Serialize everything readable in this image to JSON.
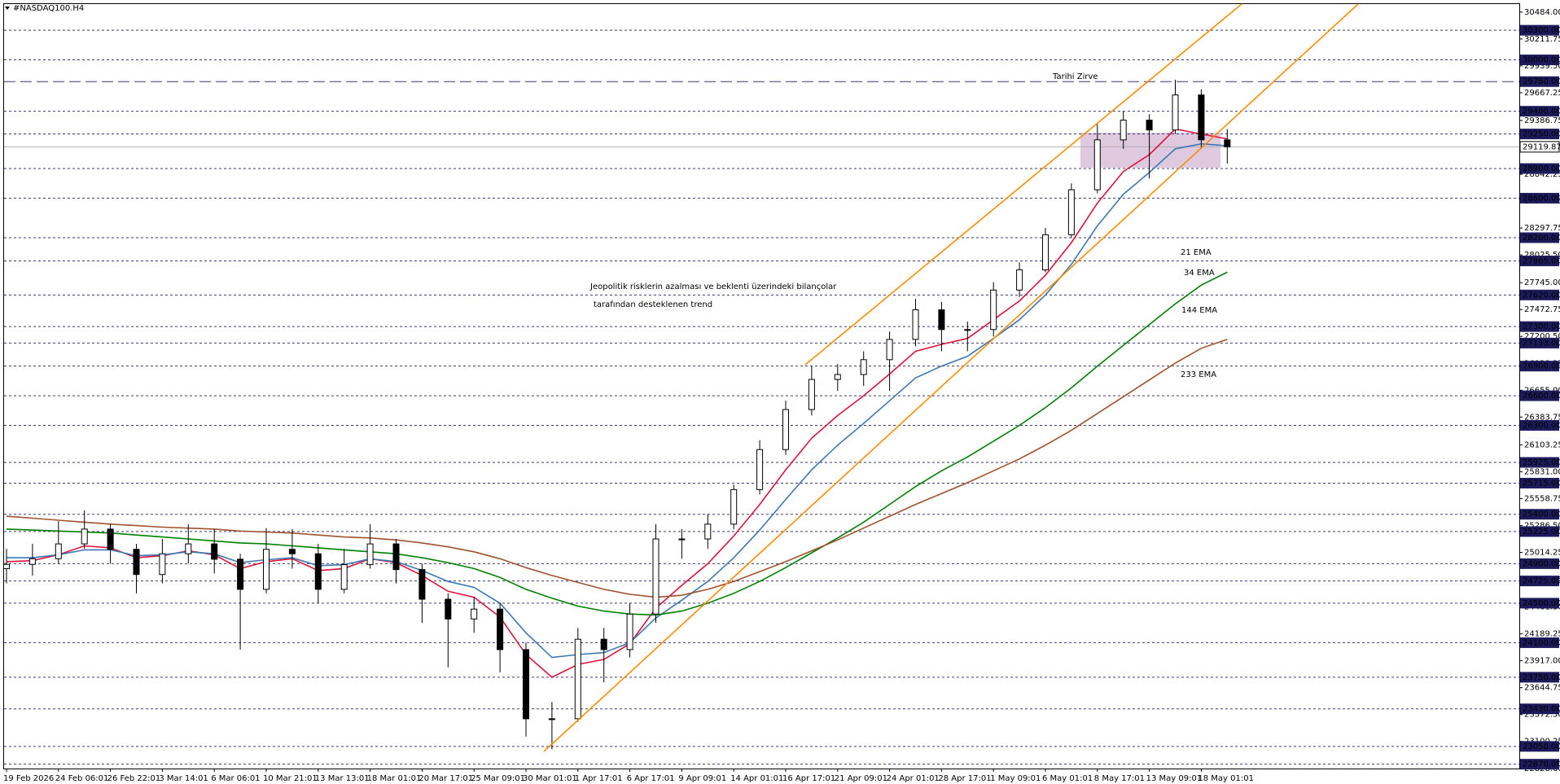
{
  "chart_data": {
    "type": "candlestick",
    "title": "#NASDAQ100.H4",
    "categories": [
      "19 Feb 2026",
      null,
      "24 Feb 06:01",
      null,
      "26 Feb 22:01",
      null,
      "3 Mar 14:01",
      null,
      "6 Mar 06:01",
      null,
      "10 Mar 21:01",
      null,
      "13 Mar 13:01",
      null,
      "18 Mar 01:01",
      null,
      "20 Mar 17:01",
      null,
      "25 Mar 09:01",
      null,
      "30 Mar 01:01",
      null,
      "1 Apr 17:01",
      null,
      "6 Apr 17:01",
      null,
      "9 Apr 09:01",
      null,
      "14 Apr 01:01",
      null,
      "16 Apr 17:01",
      null,
      "21 Apr 09:01",
      null,
      "24 Apr 01:01",
      null,
      "28 Apr 17:01",
      null,
      "1 May 09:01",
      null,
      "6 May 01:01",
      null,
      "8 May 17:01",
      null,
      "13 May 09:01",
      null,
      "18 May 01:01",
      null
    ],
    "open": [
      24850,
      24893,
      24950,
      25100,
      25250,
      25045,
      24790,
      25000,
      25100,
      24945,
      24640,
      25045,
      25000,
      24640,
      24890,
      25100,
      24840,
      24540,
      24340,
      24440,
      24030,
      23330,
      23330,
      24135,
      24030,
      24390,
      25150,
      25150,
      25300,
      25650,
      26055,
      26460,
      26765,
      26815,
      26965,
      27170,
      27470,
      27270,
      27270,
      27670,
      27875,
      28230,
      28685,
      29190,
      29390,
      29290,
      29645,
      29190
    ],
    "high": [
      25050,
      25100,
      25330,
      25440,
      25300,
      25100,
      25150,
      25300,
      25250,
      25000,
      25260,
      25250,
      25100,
      25050,
      25300,
      25150,
      24900,
      24600,
      24560,
      24500,
      24100,
      23500,
      24250,
      24250,
      24500,
      25300,
      25250,
      25400,
      25700,
      26150,
      26550,
      26900,
      26920,
      27050,
      27250,
      27580,
      27550,
      27350,
      27750,
      27950,
      28300,
      28750,
      29350,
      29480,
      29450,
      29800,
      29700,
      29300
    ],
    "low": [
      24700,
      24780,
      24900,
      25050,
      24900,
      24600,
      24700,
      24900,
      24800,
      24030,
      24600,
      24850,
      24500,
      24600,
      24850,
      24700,
      24300,
      23850,
      24200,
      23800,
      23150,
      23020,
      23300,
      23700,
      23950,
      24300,
      24950,
      25050,
      25250,
      25600,
      26000,
      26400,
      26650,
      26700,
      26650,
      27100,
      27050,
      27050,
      27200,
      27600,
      27850,
      28200,
      28650,
      29100,
      28800,
      29250,
      29100,
      28950
    ],
    "close": [
      24893,
      24950,
      25100,
      25250,
      25045,
      24790,
      25000,
      25100,
      24945,
      24640,
      25045,
      25000,
      24640,
      24890,
      25100,
      24840,
      24540,
      24340,
      24440,
      24030,
      23330,
      23330,
      24135,
      24030,
      24390,
      25150,
      25150,
      25300,
      25650,
      26055,
      26460,
      26765,
      26815,
      26965,
      27170,
      27470,
      27270,
      27270,
      27670,
      27875,
      28230,
      28685,
      29190,
      29390,
      29290,
      29645,
      29190,
      29120
    ],
    "up_color": "#ffffff",
    "down_color": "#000000",
    "series": [
      {
        "name": "21 EMA",
        "color": "#dc143c",
        "values": [
          24920,
          24930,
          24990,
          25080,
          25060,
          24960,
          24980,
          25030,
          24990,
          24850,
          24920,
          24950,
          24830,
          24850,
          24950,
          24910,
          24780,
          24620,
          24560,
          24360,
          23980,
          23750,
          23880,
          23930,
          24090,
          24450,
          24680,
          24900,
          25180,
          25500,
          25850,
          26170,
          26400,
          26600,
          26820,
          27050,
          27120,
          27180,
          27370,
          27560,
          27820,
          28150,
          28550,
          28870,
          29040,
          29300,
          29250,
          29200
        ]
      },
      {
        "name": "34 EMA",
        "color": "#3c78b4",
        "values": [
          24960,
          24960,
          24990,
          25040,
          25040,
          24980,
          24990,
          25020,
          25000,
          24910,
          24940,
          24960,
          24880,
          24890,
          24950,
          24920,
          24830,
          24720,
          24660,
          24500,
          24200,
          23950,
          23980,
          24000,
          24100,
          24350,
          24530,
          24720,
          24960,
          25240,
          25550,
          25850,
          26100,
          26320,
          26550,
          26780,
          26900,
          27000,
          27180,
          27370,
          27620,
          27930,
          28320,
          28640,
          28860,
          29100,
          29150,
          29130
        ]
      },
      {
        "name": "144 EMA",
        "color": "#008000",
        "values": [
          25250,
          25240,
          25230,
          25220,
          25210,
          25190,
          25170,
          25150,
          25130,
          25110,
          25100,
          25080,
          25060,
          25040,
          25020,
          25000,
          24960,
          24910,
          24850,
          24760,
          24640,
          24550,
          24470,
          24420,
          24390,
          24380,
          24420,
          24500,
          24600,
          24720,
          24860,
          25010,
          25160,
          25320,
          25500,
          25680,
          25840,
          25980,
          26140,
          26300,
          26480,
          26680,
          26900,
          27110,
          27320,
          27530,
          27720,
          27850
        ]
      },
      {
        "name": "233 EMA",
        "color": "#a0522d",
        "values": [
          25380,
          25360,
          25340,
          25320,
          25300,
          25285,
          25270,
          25260,
          25250,
          25230,
          25220,
          25210,
          25190,
          25170,
          25160,
          25140,
          25110,
          25070,
          25020,
          24950,
          24860,
          24780,
          24710,
          24640,
          24590,
          24560,
          24580,
          24640,
          24720,
          24820,
          24920,
          25030,
          25140,
          25260,
          25380,
          25500,
          25610,
          25720,
          25840,
          25960,
          26100,
          26250,
          26420,
          26590,
          26760,
          26930,
          27080,
          27170
        ]
      }
    ],
    "ylim": [
      22826,
      30565
    ],
    "yticks": [
      {
        "value": 30484,
        "label": "30484.00"
      },
      {
        "value": 30211.75,
        "label": "30211.75"
      },
      {
        "value": 29939.5,
        "label": "29939.50"
      },
      {
        "value": 29667.25,
        "label": "29667.25"
      },
      {
        "value": 29386.75,
        "label": "29386.75"
      },
      {
        "value": 28842.25,
        "label": "28842.25"
      },
      {
        "value": 28570,
        "label": "28570.00"
      },
      {
        "value": 28297.75,
        "label": "28297.75"
      },
      {
        "value": 28025.5,
        "label": "28025.50"
      },
      {
        "value": 27745,
        "label": "27745.00"
      },
      {
        "value": 27472.75,
        "label": "27472.75"
      },
      {
        "value": 27200.5,
        "label": "27200.50"
      },
      {
        "value": 26928.25,
        "label": "26928.25"
      },
      {
        "value": 26655,
        "label": "26655.00"
      },
      {
        "value": 26383.75,
        "label": "26383.75"
      },
      {
        "value": 26103.25,
        "label": "26103.25"
      },
      {
        "value": 25831,
        "label": "25831.00"
      },
      {
        "value": 25558.75,
        "label": "25558.75"
      },
      {
        "value": 25286.5,
        "label": "25286.50"
      },
      {
        "value": 25014.25,
        "label": "25014.25"
      },
      {
        "value": 24742,
        "label": "24742.00"
      },
      {
        "value": 24461.5,
        "label": "24461.50"
      },
      {
        "value": 24189.25,
        "label": "24189.25"
      },
      {
        "value": 23917,
        "label": "23917.00"
      },
      {
        "value": 23644.75,
        "label": "23644.75"
      },
      {
        "value": 23372.5,
        "label": "23372.50"
      },
      {
        "value": 23100.25,
        "label": "23100.25"
      },
      {
        "value": 22828,
        "label": "22828.00"
      }
    ],
    "levels": [
      {
        "value": 30300,
        "label": "30300.00"
      },
      {
        "value": 30000,
        "label": "30000.00"
      },
      {
        "value": 29480,
        "label": "29480.00"
      },
      {
        "value": 29250,
        "label": "29250.00"
      },
      {
        "value": 28900,
        "label": "28900.00"
      },
      {
        "value": 28600,
        "label": "28600.00"
      },
      {
        "value": 28200,
        "label": "28200.00"
      },
      {
        "value": 27965,
        "label": "27965.00"
      },
      {
        "value": 27620,
        "label": "27620.00"
      },
      {
        "value": 27300,
        "label": "27300.00"
      },
      {
        "value": 27133,
        "label": "27133.00"
      },
      {
        "value": 26900,
        "label": "26900.00"
      },
      {
        "value": 26600,
        "label": "26600.00"
      },
      {
        "value": 26300,
        "label": "26300.00"
      },
      {
        "value": 25925,
        "label": "25925.00"
      },
      {
        "value": 25715,
        "label": "25715.00"
      },
      {
        "value": 25400,
        "label": "25400.00"
      },
      {
        "value": 25225,
        "label": "25225.00"
      },
      {
        "value": 24900,
        "label": "24900.00"
      },
      {
        "value": 24725,
        "label": "24725.00"
      },
      {
        "value": 24500,
        "label": "24500.00"
      },
      {
        "value": 24100,
        "label": "24100.00"
      },
      {
        "value": 23750,
        "label": "23750.00"
      },
      {
        "value": 23430,
        "label": "23430.00"
      },
      {
        "value": 23050,
        "label": "23050.00"
      },
      {
        "value": 22870,
        "label": "22870.00"
      }
    ],
    "peak_level": {
      "value": 29780,
      "label": "29780.00",
      "text": "Tarihi Zirve"
    },
    "current_price": {
      "value": 29119.87,
      "label": "29119.87"
    },
    "annotations": [
      "Jeopolitik risklerin azalması ve beklenti üzerindeki bilançolar",
      "tarafından desteklenen trend"
    ]
  }
}
